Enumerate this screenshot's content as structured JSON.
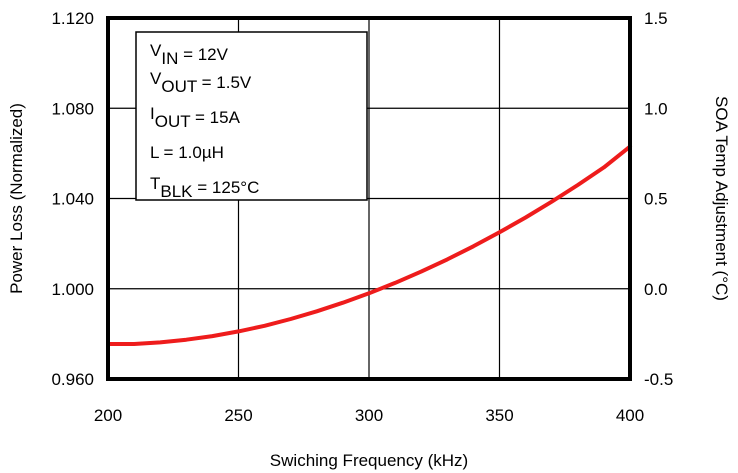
{
  "chart_data": {
    "type": "line",
    "title": "",
    "xlabel": "Swiching Frequency (kHz)",
    "ylabel": "Power Loss (Normalized)",
    "y2label": "SOA Temp Adjustment (°C)",
    "xlim": [
      200,
      400
    ],
    "ylim": [
      0.96,
      1.12
    ],
    "y2lim": [
      -0.5,
      1.5
    ],
    "x_ticks": [
      "200",
      "250",
      "300",
      "350",
      "400"
    ],
    "y_ticks": [
      "0.960",
      "1.000",
      "1.040",
      "1.080",
      "1.120"
    ],
    "y2_ticks": [
      "-0.5",
      "0.0",
      "0.5",
      "1.0",
      "1.5"
    ],
    "grid": true,
    "series": [
      {
        "color": "#ee1c1c",
        "x": [
          200,
          210,
          220,
          230,
          240,
          250,
          260,
          270,
          280,
          290,
          300,
          310,
          320,
          330,
          340,
          350,
          360,
          370,
          380,
          390,
          400
        ],
        "y": [
          0.9755,
          0.9755,
          0.9762,
          0.9774,
          0.979,
          0.9811,
          0.9836,
          0.9866,
          0.99,
          0.9938,
          0.998,
          1.0026,
          1.0076,
          1.013,
          1.0188,
          1.025,
          1.0316,
          1.0386,
          1.046,
          1.0538,
          1.063
        ]
      }
    ],
    "annotation": {
      "lines": [
        {
          "main": "V",
          "sub": "IN",
          "rest": " = 12V"
        },
        {
          "main": "V",
          "sub": "OUT",
          "rest": " = 1.5V"
        },
        {
          "main": "I",
          "sub": "OUT",
          "rest": "  =  15A"
        },
        {
          "main": "L  =  1.0µH",
          "sub": "",
          "rest": ""
        },
        {
          "main": "T",
          "sub": "BLK",
          "rest": " = 125°C"
        }
      ]
    }
  }
}
